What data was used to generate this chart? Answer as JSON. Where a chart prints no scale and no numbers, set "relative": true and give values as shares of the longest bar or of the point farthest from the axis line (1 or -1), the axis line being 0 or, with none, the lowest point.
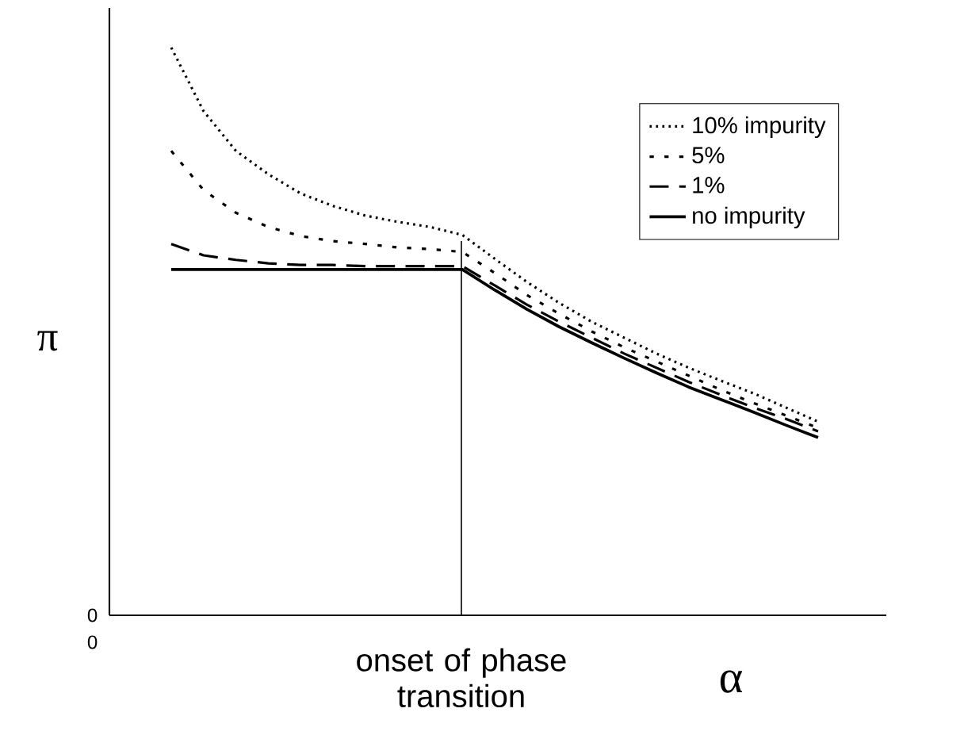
{
  "chart_data": {
    "type": "line",
    "relative": true,
    "xlabel": "α",
    "ylabel": "π",
    "legend": "top right",
    "marker": "none",
    "categories": [
      null,
      null,
      null,
      null,
      null,
      null,
      null,
      null,
      null,
      null,
      null,
      null,
      null,
      null,
      null,
      null,
      null,
      null,
      null,
      null,
      null
    ],
    "series": [
      {
        "name": "10% impurity",
        "color": "#000000",
        "line_style": "dotted",
        "values": [
          1,
          0.888,
          0.818,
          0.777,
          0.743,
          0.721,
          0.704,
          0.693,
          0.684,
          0.67,
          0.628,
          0.587,
          0.55,
          0.517,
          0.489,
          0.461,
          0.436,
          0.413,
          0.391,
          0.366,
          0.341
        ]
      },
      {
        "name": "5%",
        "color": "#000000",
        "line_style": "dotted",
        "values": [
          0.818,
          0.749,
          0.709,
          0.684,
          0.668,
          0.659,
          0.654,
          0.648,
          0.645,
          0.64,
          0.603,
          0.564,
          0.531,
          0.5,
          0.472,
          0.447,
          0.422,
          0.397,
          0.374,
          0.352,
          0.33
        ]
      },
      {
        "name": "1%",
        "color": "#000000",
        "line_style": "dashed",
        "values": [
          0.654,
          0.634,
          0.626,
          0.62,
          0.617,
          0.617,
          0.615,
          0.615,
          0.615,
          0.615,
          0.581,
          0.547,
          0.517,
          0.489,
          0.461,
          0.436,
          0.411,
          0.388,
          0.366,
          0.346,
          0.324
        ]
      },
      {
        "name": "no impurity",
        "color": "#000000",
        "line_style": "solid",
        "values": [
          0.609,
          0.609,
          0.609,
          0.609,
          0.609,
          0.609,
          0.609,
          0.609,
          0.609,
          0.609,
          0.573,
          0.539,
          0.508,
          0.48,
          0.453,
          0.427,
          0.402,
          0.38,
          0.358,
          0.335,
          0.313
        ]
      }
    ],
    "annotations": [
      "0",
      "0",
      "onset of phase transition"
    ]
  }
}
